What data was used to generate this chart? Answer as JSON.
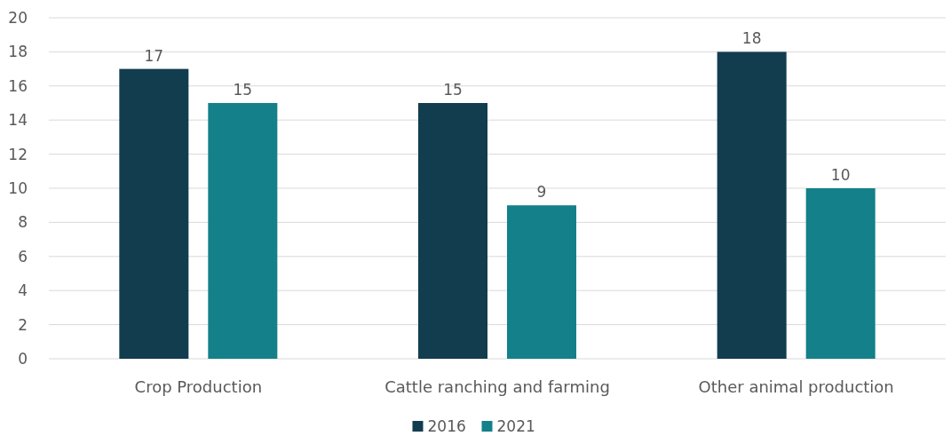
{
  "chart_data": {
    "type": "bar",
    "categories": [
      "Crop Production",
      "Cattle ranching and farming",
      "Other animal production"
    ],
    "series": [
      {
        "name": "2016",
        "color": "#123d4f",
        "values": [
          17,
          15,
          18
        ]
      },
      {
        "name": "2021",
        "color": "#13808a",
        "values": [
          15,
          9,
          10
        ]
      }
    ],
    "ylim": [
      0,
      20
    ],
    "yticks": [
      0,
      2,
      4,
      6,
      8,
      10,
      12,
      14,
      16,
      18,
      20
    ],
    "grid": "y",
    "legend": "bottom",
    "data_labels": true
  }
}
